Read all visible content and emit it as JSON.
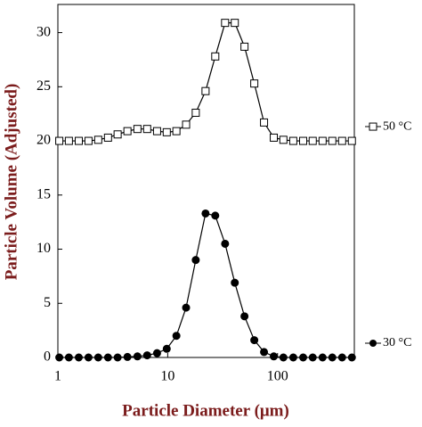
{
  "chart_data": {
    "type": "line",
    "x_label": "Particle Diameter (μm)",
    "y_label": "Particle Volume (Adjusted)",
    "x": [
      1.03,
      1.26,
      1.55,
      1.9,
      2.33,
      2.86,
      3.5,
      4.3,
      5.3,
      6.5,
      8,
      9.8,
      12,
      14.7,
      18,
      22.1,
      27.1,
      33.3,
      40.8,
      50,
      61.4,
      75.3,
      92.4,
      113,
      139,
      171,
      209,
      257,
      315,
      387,
      475
    ],
    "series": [
      {
        "name": "50 °C",
        "color": "#000000",
        "marker": "square",
        "values": [
          20,
          20,
          20,
          20,
          20.1,
          20.3,
          20.6,
          20.9,
          21.1,
          21.1,
          20.9,
          20.8,
          20.9,
          21.5,
          22.6,
          24.6,
          27.8,
          30.9,
          30.9,
          28.7,
          25.3,
          21.7,
          20.3,
          20.1,
          20,
          20,
          20,
          20,
          20,
          20,
          20
        ]
      },
      {
        "name": "30 °C",
        "color": "#000000",
        "marker": "circle",
        "values": [
          0,
          0,
          0,
          0,
          0,
          0,
          0,
          0.05,
          0.1,
          0.2,
          0.4,
          0.8,
          2.0,
          4.6,
          9.0,
          13.3,
          13.1,
          10.5,
          6.9,
          3.8,
          1.6,
          0.5,
          0.1,
          0,
          0,
          0,
          0,
          0,
          0,
          0,
          0
        ]
      }
    ],
    "xlim": [
      1,
      500
    ],
    "xscale": "log",
    "xticks": [
      1,
      10,
      100
    ],
    "ylim": [
      0,
      32.6
    ],
    "yticks": [
      0,
      5,
      10,
      15,
      20,
      25,
      30
    ]
  }
}
